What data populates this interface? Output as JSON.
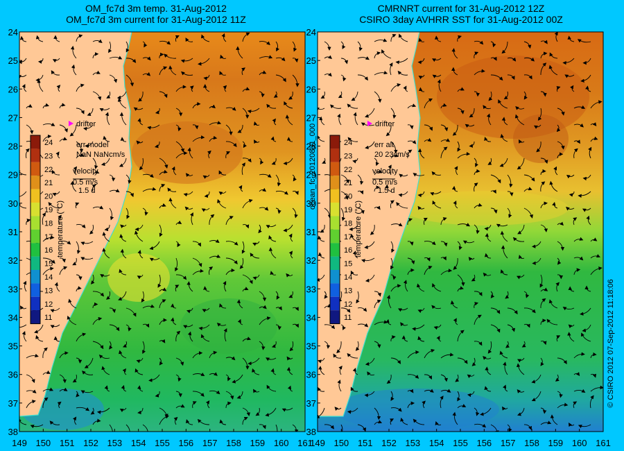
{
  "panels": [
    {
      "title_line1": "OM_fc7d 3m temp. 31-Aug-2012",
      "title_line2": "OM_fc7d 3m current for 31-Aug-2012 11Z",
      "err_title": "err model",
      "err_value": "NaN NaNcm/s"
    },
    {
      "title_line1": "CMRNRT current for 31-Aug-2012 12Z",
      "title_line2": "CSIRO 3day AVHRR SST for 31-Aug-2012 00Z",
      "err_title": "err alt",
      "err_value": "20 23cm/s"
    }
  ],
  "drifter_label": "drifter",
  "velocity_label": "velocity",
  "velocity_scale": "0.5 m/s",
  "velocity_duration": "1.5 d",
  "colorbar": {
    "label": "temperature (°C)",
    "ticks": [
      24,
      23,
      22,
      21,
      20,
      19,
      18,
      17,
      16,
      15,
      14,
      13,
      12,
      11
    ],
    "colors": [
      "#8b1a0a",
      "#b03010",
      "#d05a10",
      "#e0901a",
      "#f0c020",
      "#d8e030",
      "#a8e030",
      "#60d030",
      "#20c040",
      "#10b880",
      "#1090d0",
      "#1060e0",
      "#1030c0",
      "#101880"
    ]
  },
  "lat_ticks": [
    "24",
    "25",
    "26",
    "27",
    "28",
    "29",
    "30",
    "31",
    "32",
    "33",
    "34",
    "35",
    "36",
    "37",
    "38"
  ],
  "lon_ticks": [
    "149",
    "150",
    "151",
    "152",
    "153",
    "154",
    "155",
    "156",
    "157",
    "158",
    "159",
    "160",
    "161"
  ],
  "left_vertical_label": "ocean_fc_20120831_000",
  "right_vertical_label": "© CSIRO 2012   07-Sep-2012 11:18:06",
  "colors": {
    "background": "#00c8ff",
    "land": "#ffc896",
    "coast_line": "#40e0d0",
    "drifter": "#ff00ff"
  }
}
